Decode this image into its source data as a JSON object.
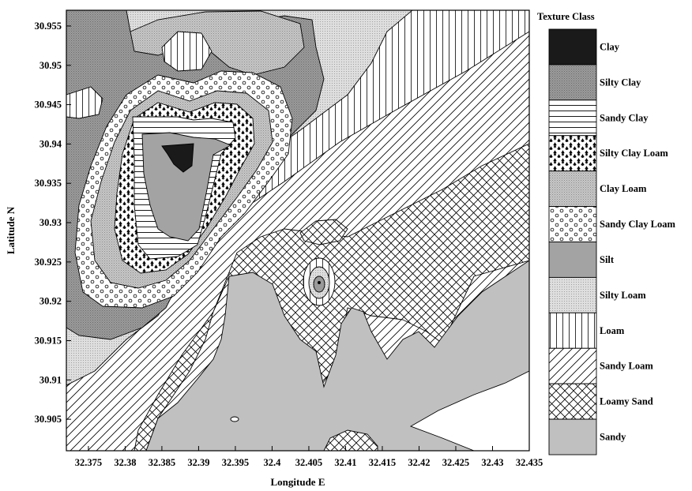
{
  "chart_data": {
    "type": "contour-map",
    "xlabel": "Longitude E",
    "ylabel": "Latitude N",
    "xlim": [
      32.372,
      32.435
    ],
    "ylim": [
      30.901,
      30.957
    ],
    "x_ticks": [
      "32.375",
      "32.38",
      "32.385",
      "32.39",
      "32.395",
      "32.4",
      "32.405",
      "32.41",
      "32.415",
      "32.42",
      "32.425",
      "32.43",
      "32.435"
    ],
    "y_ticks": [
      "30.905",
      "30.91",
      "30.915",
      "30.92",
      "30.925",
      "30.93",
      "30.935",
      "30.94",
      "30.945",
      "30.95",
      "30.955"
    ],
    "legend": {
      "title": "Texture Class",
      "position": "right",
      "classes": [
        {
          "label": "Clay",
          "pattern": "solid-black",
          "color": "#1a1a1a"
        },
        {
          "label": "Silty Clay",
          "pattern": "dark-stipple",
          "color": "#8f8f8f"
        },
        {
          "label": "Sandy Clay",
          "pattern": "horizontal-lines",
          "color": "#ffffff"
        },
        {
          "label": "Silty Clay Loam",
          "pattern": "tree-marks",
          "color": "#ffffff"
        },
        {
          "label": "Clay Loam",
          "pattern": "medium-stipple",
          "color": "#bdbdbd"
        },
        {
          "label": "Sandy Clay Loam",
          "pattern": "circles",
          "color": "#ffffff"
        },
        {
          "label": "Silt",
          "pattern": "dark-gray",
          "color": "#a0a0a0"
        },
        {
          "label": "Silty Loam",
          "pattern": "fine-stipple",
          "color": "#cfcfcf"
        },
        {
          "label": "Loam",
          "pattern": "vertical-lines",
          "color": "#ffffff"
        },
        {
          "label": "Sandy Loam",
          "pattern": "diagonal-lines",
          "color": "#ffffff"
        },
        {
          "label": "Loamy Sand",
          "pattern": "crosshatch",
          "color": "#ffffff"
        },
        {
          "label": "Sandy",
          "pattern": "light-gray",
          "color": "#c0c0c0"
        }
      ]
    }
  }
}
